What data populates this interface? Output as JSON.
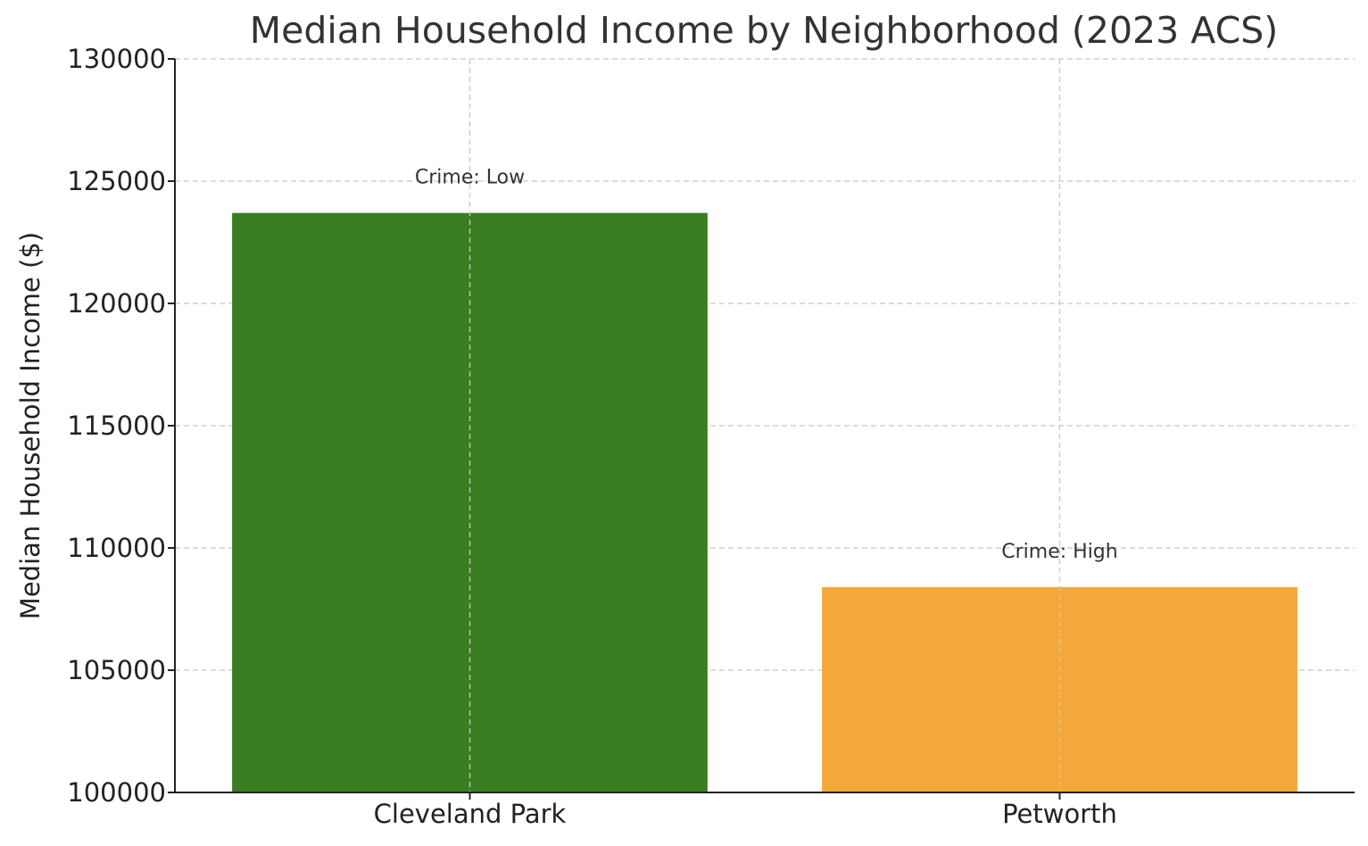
{
  "chart_data": {
    "type": "bar",
    "title": "Median Household Income by Neighborhood (2023 ACS)",
    "xlabel": "",
    "ylabel": "Median Household Income ($)",
    "categories": [
      "Cleveland Park",
      "Petworth"
    ],
    "values": [
      123700,
      108400
    ],
    "annotations": [
      "Crime: Low",
      "Crime: High"
    ],
    "colors": [
      "#3a7d22",
      "#f4a83b"
    ],
    "ylim": [
      100000,
      130000
    ],
    "yticks": [
      100000,
      105000,
      110000,
      115000,
      120000,
      125000,
      130000
    ],
    "grid": true,
    "legend": "none"
  }
}
